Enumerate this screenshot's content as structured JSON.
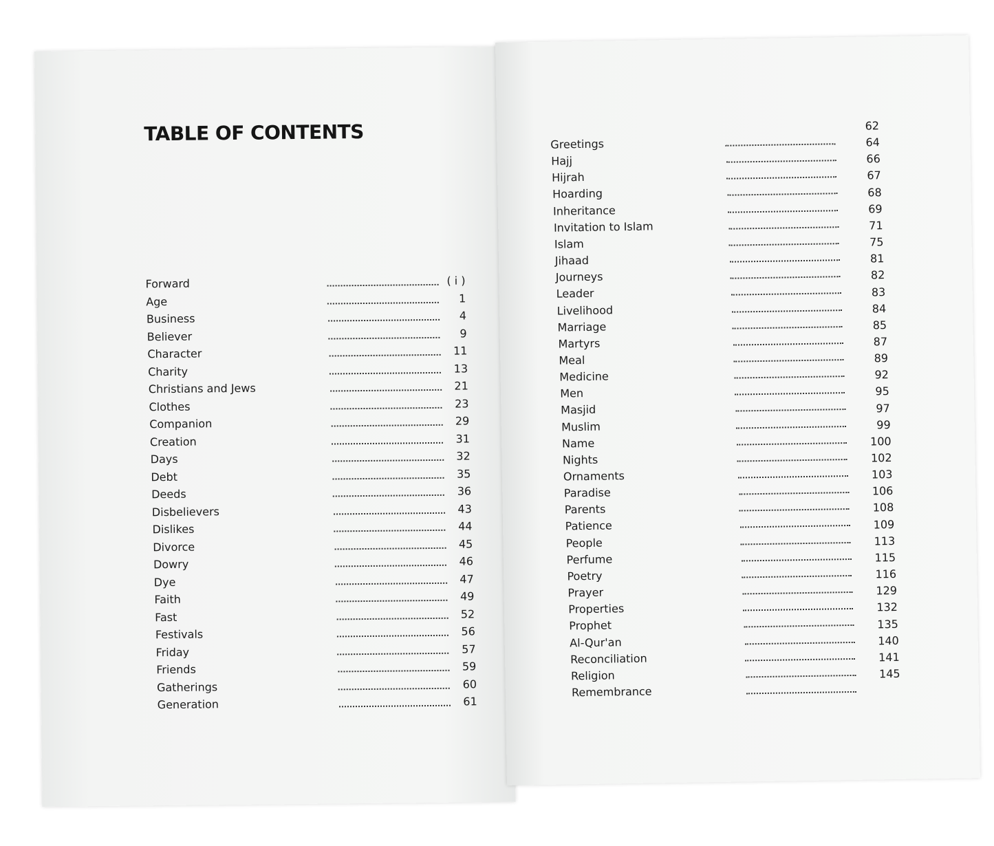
{
  "left_page": {
    "title": "TABLE OF CONTENTS",
    "entries": [
      {
        "label": "Forward",
        "page": "( i )"
      },
      {
        "label": "Age",
        "page": "1"
      },
      {
        "label": "Business",
        "page": "4"
      },
      {
        "label": "Believer",
        "page": "9"
      },
      {
        "label": "Character",
        "page": "11"
      },
      {
        "label": "Charity",
        "page": "13"
      },
      {
        "label": "Christians and Jews",
        "page": "21"
      },
      {
        "label": "Clothes",
        "page": "23"
      },
      {
        "label": "Companion",
        "page": "29"
      },
      {
        "label": "Creation",
        "page": "31"
      },
      {
        "label": "Days",
        "page": "32"
      },
      {
        "label": "Debt",
        "page": "35"
      },
      {
        "label": "Deeds",
        "page": "36"
      },
      {
        "label": "Disbelievers",
        "page": "43"
      },
      {
        "label": "Dislikes",
        "page": "44"
      },
      {
        "label": "Divorce",
        "page": "45"
      },
      {
        "label": "Dowry",
        "page": "46"
      },
      {
        "label": "Dye",
        "page": "47"
      },
      {
        "label": "Faith",
        "page": "49"
      },
      {
        "label": "Fast",
        "page": "52"
      },
      {
        "label": "Festivals",
        "page": "56"
      },
      {
        "label": "Friday",
        "page": "57"
      },
      {
        "label": "Friends",
        "page": "59"
      },
      {
        "label": "Gatherings",
        "page": "60"
      },
      {
        "label": "Generation",
        "page": "61"
      }
    ]
  },
  "right_page": {
    "entries": [
      {
        "label": "Greetings",
        "page": "62"
      },
      {
        "label": "Hajj",
        "page": "64"
      },
      {
        "label": "Hijrah",
        "page": "66"
      },
      {
        "label": "Hoarding",
        "page": "67"
      },
      {
        "label": "Inheritance",
        "page": "68"
      },
      {
        "label": "Invitation to Islam",
        "page": "69"
      },
      {
        "label": "Islam",
        "page": "71"
      },
      {
        "label": "Jihaad",
        "page": "75"
      },
      {
        "label": "Journeys",
        "page": "81"
      },
      {
        "label": "Leader",
        "page": "82"
      },
      {
        "label": "Livelihood",
        "page": "83"
      },
      {
        "label": "Marriage",
        "page": "84"
      },
      {
        "label": "Martyrs",
        "page": "85"
      },
      {
        "label": "Meal",
        "page": "87"
      },
      {
        "label": "Medicine",
        "page": "89"
      },
      {
        "label": "Men",
        "page": "92"
      },
      {
        "label": "Masjid",
        "page": "95"
      },
      {
        "label": "Muslim",
        "page": "97"
      },
      {
        "label": "Name",
        "page": "99"
      },
      {
        "label": "Nights",
        "page": "100"
      },
      {
        "label": "Ornaments",
        "page": "102"
      },
      {
        "label": "Paradise",
        "page": "103"
      },
      {
        "label": "Parents",
        "page": "106"
      },
      {
        "label": "Patience",
        "page": "108"
      },
      {
        "label": "People",
        "page": "109"
      },
      {
        "label": "Perfume",
        "page": "113"
      },
      {
        "label": "Poetry",
        "page": "115"
      },
      {
        "label": "Prayer",
        "page": "116"
      },
      {
        "label": "Properties",
        "page": "129"
      },
      {
        "label": "Prophet",
        "page": "132"
      },
      {
        "label": "Al-Qur'an",
        "page": "135"
      },
      {
        "label": "Reconciliation",
        "page": "140"
      },
      {
        "label": "Religion",
        "page": "141"
      },
      {
        "label": "Remembrance",
        "page": "145"
      }
    ]
  }
}
